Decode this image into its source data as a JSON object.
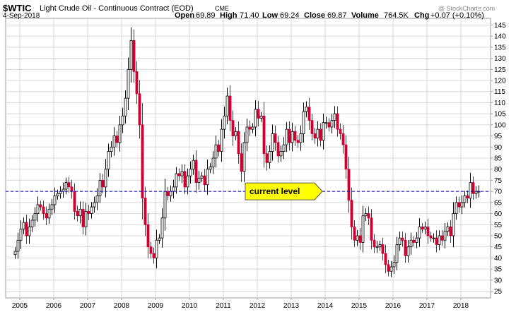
{
  "header": {
    "symbol": "$WTIC",
    "name": "Light Crude Oil - Continuous Contract (EOD)",
    "exchange": "CME",
    "date": "4-Sep-2018",
    "open_label": "Open",
    "open": "69.89",
    "high_label": "High",
    "high": "71.40",
    "low_label": "Low",
    "low": "69.24",
    "close_label": "Close",
    "close": "69.87",
    "volume_label": "Volume",
    "volume": "764.5K",
    "chg_label": "Chg",
    "chg": "+0.07 (+0.10%)",
    "watermark": "@ StockCharts.com"
  },
  "colors": {
    "up": "#000000",
    "down": "#cc0033",
    "level_line": "#0000cc",
    "callout_fill": "#ffff00",
    "grid": "#d8d8d8"
  },
  "chart_data": {
    "type": "candlestick",
    "x_ticks": [
      "2005",
      "2006",
      "2007",
      "2008",
      "2009",
      "2010",
      "2011",
      "2012",
      "2013",
      "2014",
      "2015",
      "2016",
      "2017",
      "2018"
    ],
    "y_ticks": [
      25,
      30,
      35,
      40,
      45,
      50,
      55,
      60,
      65,
      70,
      75,
      80,
      85,
      90,
      95,
      100,
      105,
      110,
      115,
      120,
      125,
      130,
      135,
      140,
      145
    ],
    "ylim": [
      22,
      148
    ],
    "grid": true,
    "y_axis_side": "right",
    "reference_line": {
      "value": 70,
      "label": "current level"
    },
    "series": [
      {
        "closes": [
          43,
          48,
          53,
          56,
          50,
          54,
          57,
          60,
          64,
          63,
          60,
          58,
          62,
          64,
          68,
          69,
          70,
          71,
          74,
          72,
          70,
          61,
          59,
          62,
          54,
          61,
          60,
          63,
          65,
          68,
          75,
          72,
          80,
          88,
          90,
          95,
          92,
          100,
          104,
          112,
          125,
          138,
          124,
          114,
          100,
          67,
          55,
          45,
          42,
          40,
          48,
          49,
          58,
          70,
          68,
          70,
          72,
          78,
          77,
          79,
          72,
          77,
          80,
          84,
          74,
          76,
          77,
          73,
          80,
          81,
          85,
          91,
          88,
          98,
          104,
          113,
          102,
          95,
          97,
          87,
          79,
          92,
          99,
          98,
          99,
          107,
          103,
          104,
          87,
          83,
          88,
          96,
          92,
          86,
          88,
          91,
          98,
          92,
          97,
          93,
          92,
          96,
          106,
          108,
          102,
          96,
          94,
          98,
          93,
          101,
          101,
          99,
          102,
          105,
          98,
          96,
          91,
          80,
          66,
          54,
          48,
          50,
          47,
          59,
          60,
          58,
          48,
          45,
          45,
          46,
          42,
          37,
          34,
          36,
          38,
          46,
          49,
          48,
          41,
          45,
          48,
          47,
          49,
          54,
          53,
          54,
          50,
          49,
          49,
          46,
          50,
          48,
          52,
          54,
          50,
          60,
          65,
          63,
          65,
          68,
          67,
          74,
          69,
          70,
          70
        ]
      }
    ]
  }
}
